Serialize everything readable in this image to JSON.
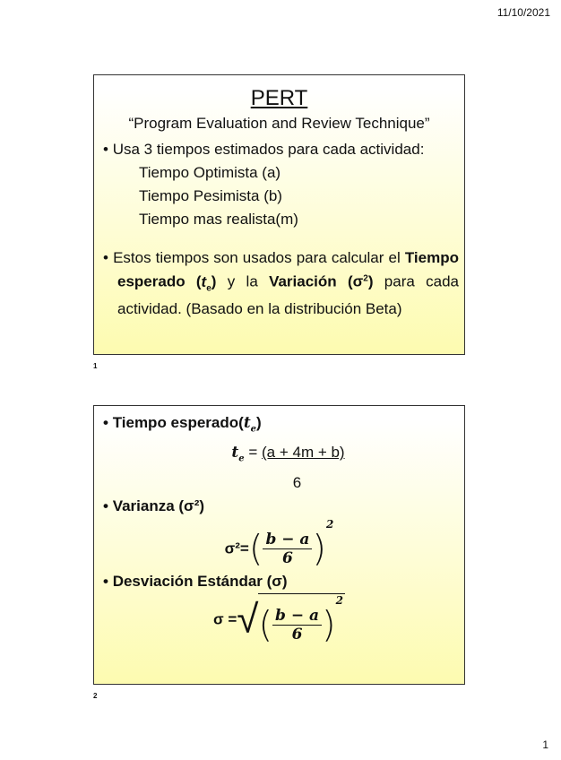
{
  "header": {
    "date": "11/10/2021"
  },
  "footer": {
    "page": "1"
  },
  "slide1": {
    "number": "1",
    "title": "PERT",
    "subtitle": "“Program Evaluation and Review Technique”",
    "bullet1": "Usa 3 tiempos estimados para cada actividad:",
    "items": [
      "Tiempo Optimista (a)",
      "Tiempo Pesimista (b)",
      "Tiempo mas realista(m)"
    ],
    "bullet2_a": "Estos tiempos son usados para calcular el",
    "bullet2_b1": "Tiempo esperado (",
    "bullet2_te": "t",
    "bullet2_e": "e",
    "bullet2_b2": ")",
    "bullet2_c": " y la ",
    "bullet2_d": "Variación (σ",
    "bullet2_sq": "2",
    "bullet2_d2": ")",
    "bullet2_f": " para cada actividad. (Basado en la distribución Beta)"
  },
  "slide2": {
    "number": "2",
    "h1": "Tiempo esperado(",
    "h1_t": "t",
    "h1_e": "e",
    "h1_close": ")",
    "f1_lhs_t": "t",
    "f1_lhs_e": "e",
    "f1_eq": " = ",
    "f1_num": "(a + 4m + b)",
    "f1_den": "6",
    "h2": "Varianza (σ²)",
    "f2_lhs": "σ²=",
    "f_num": "b − a",
    "f_den": "6",
    "f_exp": "2",
    "h3": "Desviación Estándar  (σ)",
    "f3_lhs": "σ ="
  }
}
